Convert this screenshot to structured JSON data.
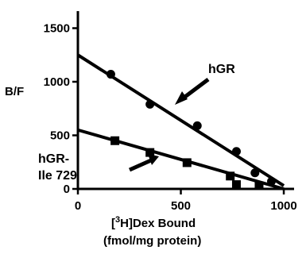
{
  "chart_data": {
    "type": "scatter",
    "title": "",
    "xlabel_prefix": "[",
    "xlabel_sup": "3",
    "xlabel_suffix": "H]Dex Bound",
    "xlabel_line2": "(fmol/mg protein)",
    "ylabel": "B/F",
    "xlim": [
      0,
      1050
    ],
    "ylim": [
      0,
      1600
    ],
    "xticks": [
      0,
      500,
      1000
    ],
    "yticks": [
      0,
      500,
      1000,
      1500
    ],
    "grid": false,
    "legend": "none",
    "series": [
      {
        "name": "hGR",
        "label_lines": [
          "hGR"
        ],
        "marker": "circle",
        "points": [
          [
            160,
            1070
          ],
          [
            350,
            790
          ],
          [
            580,
            590
          ],
          [
            770,
            350
          ],
          [
            860,
            150
          ],
          [
            940,
            70
          ]
        ],
        "fit_line": [
          [
            0,
            1250
          ],
          [
            1000,
            30
          ]
        ]
      },
      {
        "name": "hGR-Ile729",
        "label_lines": [
          "hGR-",
          "Ile 729"
        ],
        "marker": "square",
        "points": [
          [
            180,
            450
          ],
          [
            350,
            340
          ],
          [
            530,
            245
          ],
          [
            740,
            120
          ],
          [
            770,
            40
          ],
          [
            880,
            30
          ]
        ],
        "fit_line": [
          [
            0,
            550
          ],
          [
            1000,
            0
          ]
        ]
      }
    ]
  }
}
